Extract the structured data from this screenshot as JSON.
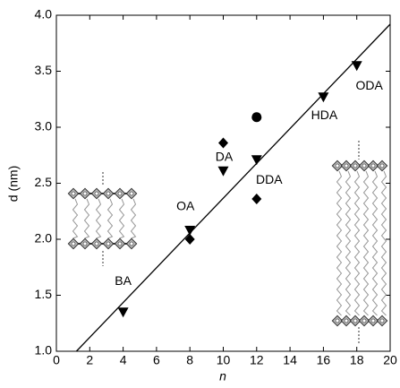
{
  "chart_data": {
    "type": "scatter",
    "x_label": "n",
    "y_label": "d (nm)",
    "xlim": [
      0,
      20
    ],
    "xticks": [
      0,
      2,
      4,
      6,
      8,
      10,
      12,
      14,
      16,
      18,
      20
    ],
    "ylim": [
      1,
      4
    ],
    "yticks": [
      {
        "value": 1,
        "label": "1.0"
      },
      1.5,
      {
        "value": 2,
        "label": "2.0"
      },
      2.5,
      {
        "value": 3,
        "label": "3.0"
      },
      3.5,
      {
        "value": 4,
        "label": "4.0"
      }
    ],
    "series": [
      {
        "marker": "triangle-down",
        "color": "#000000",
        "x": [
          4,
          8,
          10,
          12,
          16,
          18
        ],
        "values": [
          1.35,
          2.08,
          2.61,
          2.71,
          3.27,
          3.55
        ],
        "point_labels": [
          "BA",
          "OA",
          "DA",
          "DDA",
          "HDA",
          "ODA"
        ]
      },
      {
        "marker": "diamond",
        "color": "#000000",
        "x": [
          8,
          10,
          12
        ],
        "values": [
          2.0,
          2.86,
          2.36
        ]
      },
      {
        "marker": "circle",
        "color": "#000000",
        "x": [
          12
        ],
        "values": [
          3.09
        ]
      },
      {
        "marker": "line",
        "color": "#000000",
        "x": [
          1.2,
          20
        ],
        "values": [
          1.0,
          3.92
        ]
      }
    ]
  }
}
